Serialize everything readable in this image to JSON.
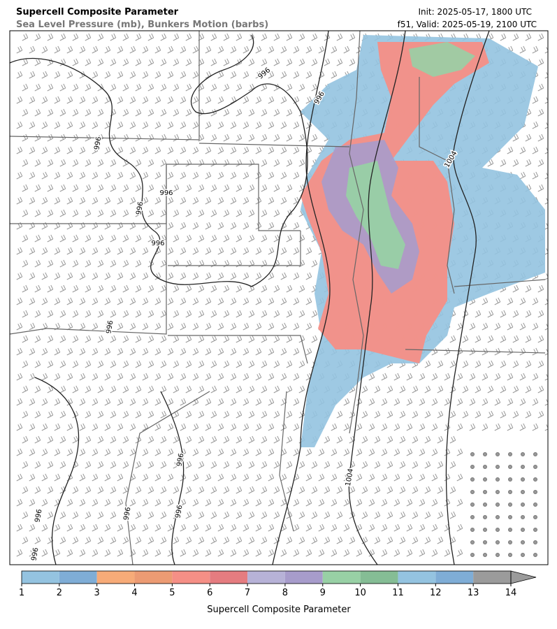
{
  "header": {
    "title": "Supercell Composite Parameter",
    "subtitle": "Sea Level Pressure (mb), Bunkers Motion (barbs)",
    "init": "Init: 2025-05-17, 1800 UTC",
    "valid": "f51, Valid: 2025-05-19, 2100 UTC"
  },
  "map": {
    "contour_labels": [
      "996",
      "996",
      "996",
      "996",
      "996",
      "996",
      "996",
      "996",
      "996",
      "996",
      "996",
      "996",
      "1004",
      "1004"
    ]
  },
  "colorbar": {
    "ticks": [
      1,
      2,
      3,
      4,
      5,
      6,
      7,
      8,
      9,
      10,
      11,
      12,
      13,
      14
    ],
    "colors": [
      "#94c3e0",
      "#7fadd6",
      "#f7ab78",
      "#ec9b73",
      "#f58f86",
      "#e57c80",
      "#b7b2d7",
      "#a79ccb",
      "#98d0a5",
      "#85bd95",
      "#94c3e0",
      "#7fadd6",
      "#9b9b9b"
    ],
    "extend_color": "#9b9b9b",
    "label": "Supercell Composite Parameter"
  }
}
